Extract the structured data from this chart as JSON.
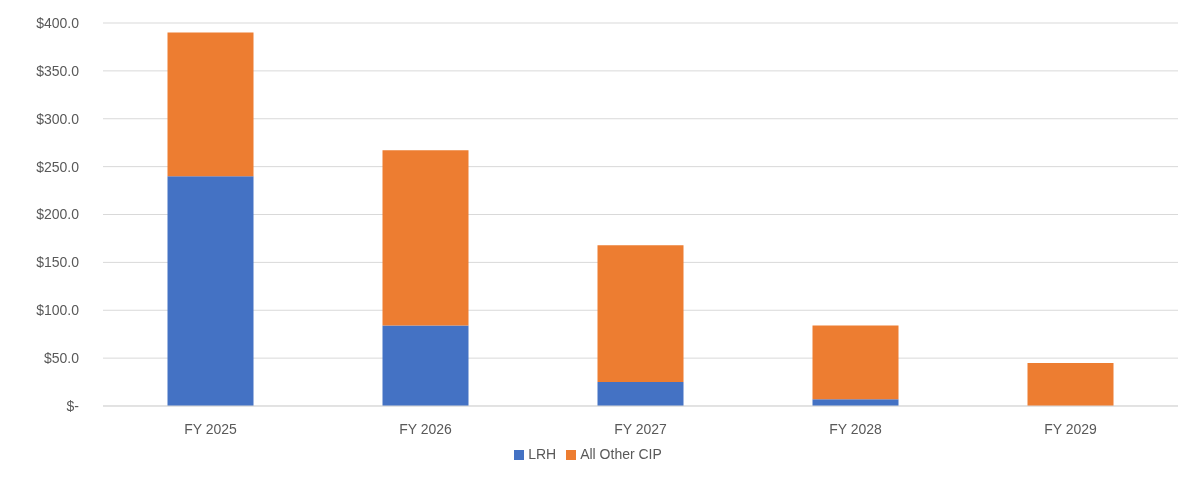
{
  "chart_data": {
    "type": "bar",
    "stacked": true,
    "categories": [
      "FY 2025",
      "FY 2026",
      "FY 2027",
      "FY 2028",
      "FY 2029"
    ],
    "series": [
      {
        "name": "LRH",
        "color": "#4472c4",
        "values": [
          240,
          84,
          25,
          7,
          0
        ]
      },
      {
        "name": "All Other CIP",
        "color": "#ed7d31",
        "values": [
          150,
          183,
          143,
          77,
          45
        ]
      }
    ],
    "ylim": [
      0,
      400
    ],
    "yticks": [
      {
        "value": 0,
        "label": "$-"
      },
      {
        "value": 50,
        "label": "$50.0"
      },
      {
        "value": 100,
        "label": "$100.0"
      },
      {
        "value": 150,
        "label": "$150.0"
      },
      {
        "value": 200,
        "label": "$200.0"
      },
      {
        "value": 250,
        "label": "$250.0"
      },
      {
        "value": 300,
        "label": "$300.0"
      },
      {
        "value": 350,
        "label": "$350.0"
      },
      {
        "value": 400,
        "label": "$400.0"
      }
    ],
    "grid": "y",
    "legend": "bottom"
  }
}
